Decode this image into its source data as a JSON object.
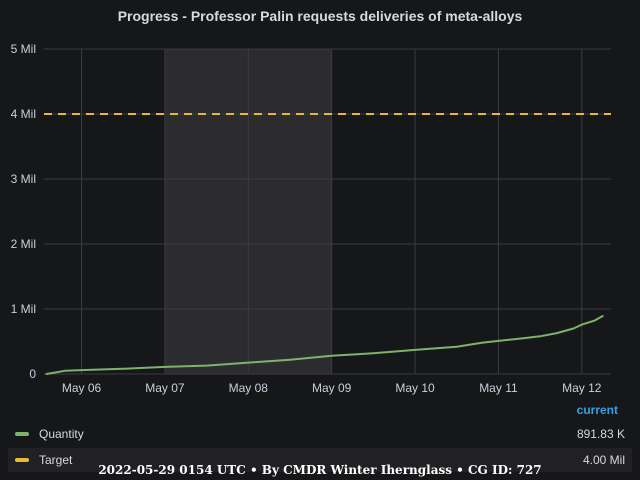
{
  "chart_data": {
    "type": "line",
    "title": "Progress - Professor Palin requests deliveries of meta-alloys",
    "y_ticks": [
      "0",
      "1 Mil",
      "2 Mil",
      "3 Mil",
      "4 Mil",
      "5 Mil"
    ],
    "x_ticks": [
      "May 06",
      "May 07",
      "May 08",
      "May 09",
      "May 10",
      "May 11",
      "May 12"
    ],
    "ylim": [
      0,
      5000000
    ],
    "xlim": [
      5.55,
      12.35
    ],
    "grid": true,
    "highlight_region": [
      7,
      9
    ],
    "series": [
      {
        "name": "Quantity",
        "color": "#7eb26d",
        "x": [
          5.58,
          5.8,
          6.0,
          6.5,
          7.0,
          7.5,
          8.0,
          8.5,
          9.0,
          9.5,
          10.0,
          10.5,
          10.8,
          11.0,
          11.3,
          11.5,
          11.7,
          11.9,
          12.0,
          12.15,
          12.25
        ],
        "values": [
          0,
          50000,
          60000,
          80000,
          110000,
          130000,
          175000,
          220000,
          280000,
          320000,
          370000,
          420000,
          480000,
          510000,
          550000,
          580000,
          630000,
          700000,
          760000,
          820000,
          891830
        ]
      },
      {
        "name": "Target",
        "color": "#eab839",
        "x": [
          5.55,
          12.35
        ],
        "values": [
          4000000,
          4000000
        ]
      }
    ]
  },
  "legend": {
    "header": "current",
    "items": [
      {
        "name": "Quantity",
        "value": "891.83 K",
        "color": "#7eb26d"
      },
      {
        "name": "Target",
        "value": "4.00 Mil",
        "color": "#eab839"
      }
    ]
  },
  "footer": "2022-05-29 0154 UTC • By CMDR Winter Ihernglass • CG ID: 727"
}
